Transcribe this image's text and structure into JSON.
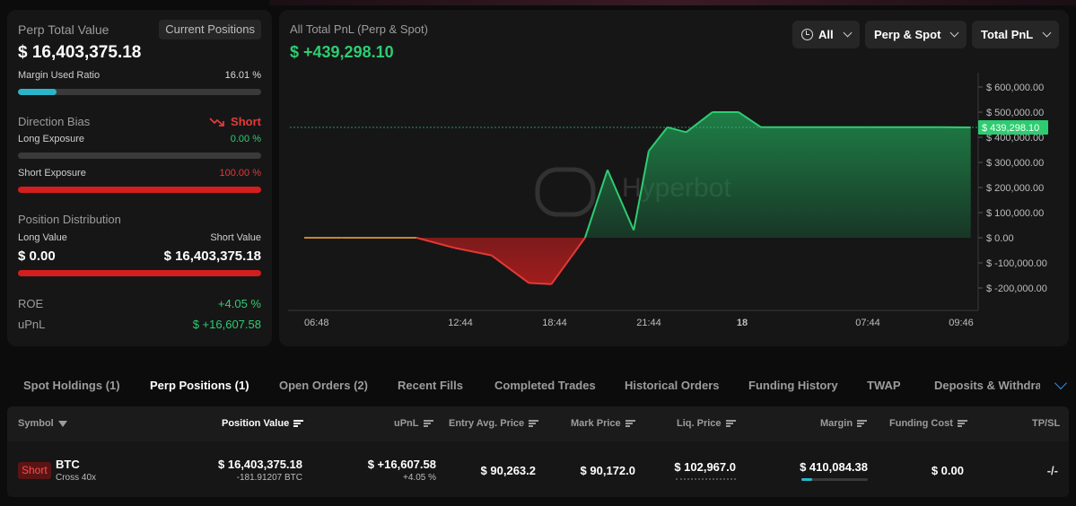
{
  "summary": {
    "title": "Perp Total Value",
    "current_positions_label": "Current Positions",
    "total_value": "$ 16,403,375.18",
    "margin_used_label": "Margin Used Ratio",
    "margin_used_value": "16.01 %",
    "margin_used_fraction": 0.1601,
    "direction_bias_label": "Direction Bias",
    "direction_bias_value": "Short",
    "long_exposure_label": "Long Exposure",
    "long_exposure_value": "0.00 %",
    "short_exposure_label": "Short Exposure",
    "short_exposure_value": "100.00 %",
    "position_distribution_label": "Position Distribution",
    "long_value_label": "Long Value",
    "short_value_label": "Short Value",
    "long_value": "$ 0.00",
    "short_value": "$ 16,403,375.18",
    "roe_label": "ROE",
    "roe_value": "+4.05 %",
    "upnl_label": "uPnL",
    "upnl_value": "$ +16,607.58"
  },
  "chart_panel": {
    "title": "All Total PnL (Perp & Spot)",
    "value": "$ +439,298.10",
    "dropdown_time": "All",
    "dropdown_scope": "Perp & Spot",
    "dropdown_metric": "Total PnL",
    "watermark": "Hyperbot",
    "current_label": "$ 439,298.10"
  },
  "chart_data": {
    "type": "area",
    "title": "All Total PnL (Perp & Spot)",
    "x_tick_labels": [
      "06:48",
      "12:44",
      "18:44",
      "21:44",
      "18",
      "07:44",
      "09:46"
    ],
    "y_tick_labels": [
      "$ 600,000.00",
      "$ 500,000.00",
      "$ 400,000.00",
      "$ 300,000.00",
      "$ 200,000.00",
      "$ 100,000.00",
      "$ 0.00",
      "$ -100,000.00",
      "$ -200,000.00"
    ],
    "ylim": [
      -250000,
      650000
    ],
    "current_value": 439298.1,
    "colors": {
      "positive": "#2ecc71",
      "negative": "#e53935",
      "flat": "#c8862a"
    },
    "series": [
      {
        "x": [
          0,
          0.5,
          1.5,
          2.0,
          2.5,
          3.0,
          3.3,
          3.75,
          4.05,
          4.4,
          4.6,
          4.85,
          5.1,
          5.45,
          5.8,
          6.1,
          7.5,
          8.5,
          8.9
        ],
        "values": [
          0,
          0,
          0,
          -40000,
          -70000,
          -180000,
          -185000,
          0,
          270000,
          30000,
          345000,
          440000,
          420000,
          500000,
          500000,
          440000,
          440000,
          440000,
          439298
        ]
      }
    ]
  },
  "tabs": [
    "Spot Holdings (1)",
    "Perp Positions (1)",
    "Open Orders (2)",
    "Recent Fills",
    "Completed Trades",
    "Historical Orders",
    "Funding History",
    "TWAP",
    "Deposits & Withdraw"
  ],
  "table": {
    "headers": [
      "Symbol",
      "Position Value",
      "uPnL",
      "Entry Avg. Price",
      "Mark Price",
      "Liq. Price",
      "Margin",
      "Funding Cost",
      "TP/SL"
    ],
    "rows": [
      {
        "side": "Short",
        "symbol": "BTC",
        "leverage": "Cross 40x",
        "position_value": "$ 16,403,375.18",
        "position_size": "-181.91207 BTC",
        "upnl": "$ +16,607.58",
        "upnl_pct": "+4.05 %",
        "entry_price": "$ 90,263.2",
        "mark_price": "$ 90,172.0",
        "liq_price": "$ 102,967.0",
        "margin": "$ 410,084.38",
        "margin_fraction": 0.16,
        "funding_cost": "$ 0.00",
        "tpsl": "-/-"
      }
    ]
  }
}
